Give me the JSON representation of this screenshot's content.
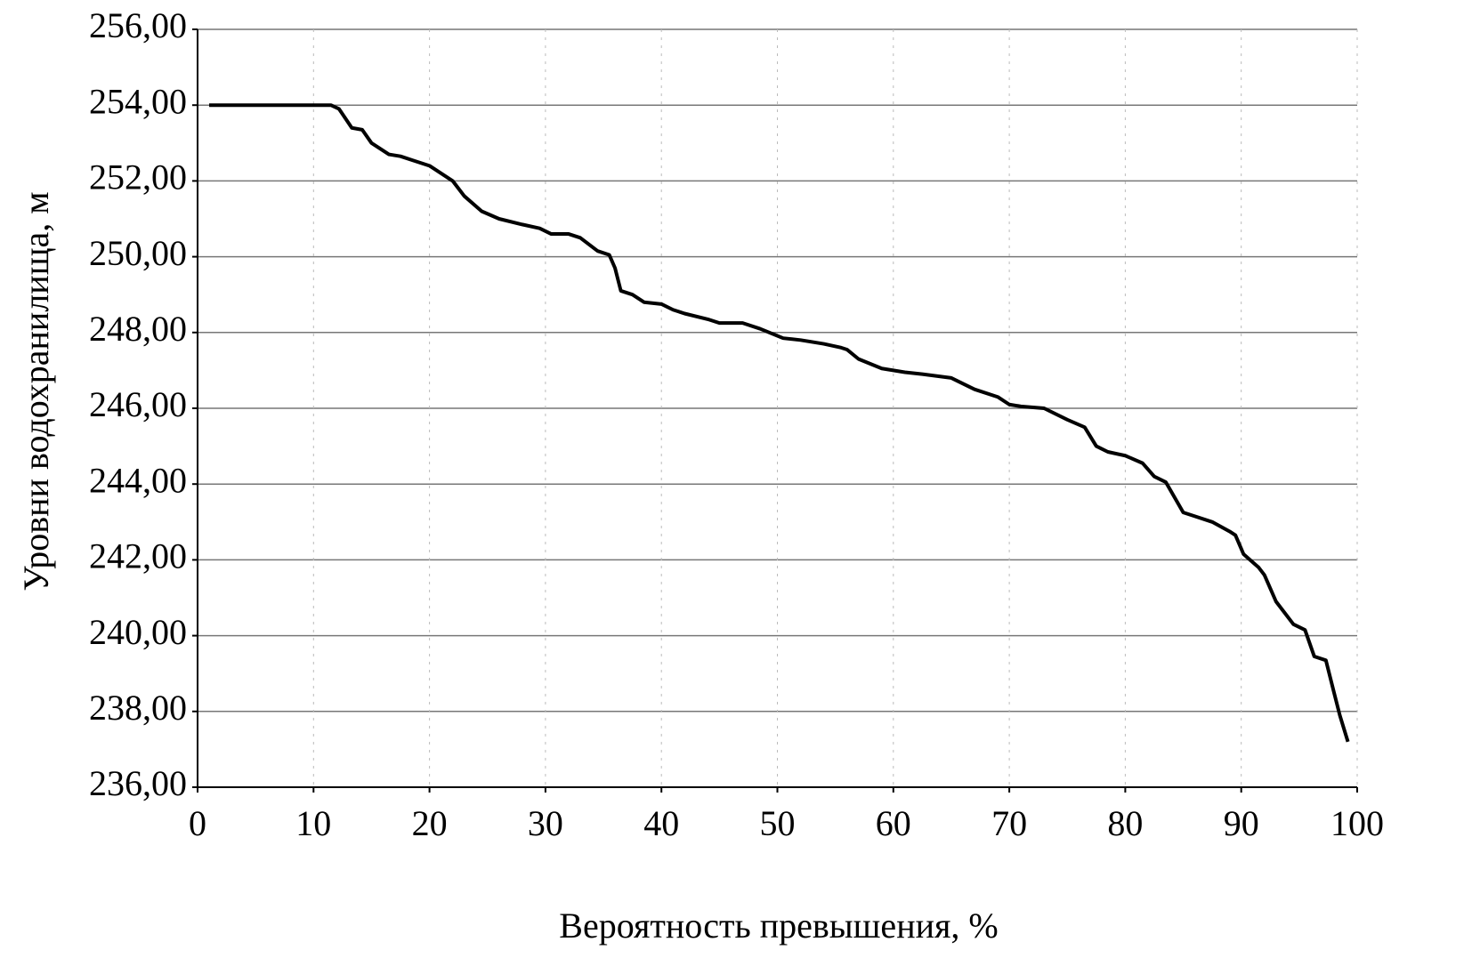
{
  "chart_data": {
    "type": "line",
    "x_label": "Вероятность превышения, %",
    "y_label": "Уровни водохранилища, м",
    "xlim": [
      0,
      100
    ],
    "xticks": [
      0,
      10,
      20,
      30,
      40,
      50,
      60,
      70,
      80,
      90,
      100
    ],
    "ylim": [
      236,
      256
    ],
    "yticks": [
      {
        "value": 236,
        "label": "236,00"
      },
      {
        "value": 238,
        "label": "238,00"
      },
      {
        "value": 240,
        "label": "240,00"
      },
      {
        "value": 242,
        "label": "242,00"
      },
      {
        "value": 244,
        "label": "244,00"
      },
      {
        "value": 246,
        "label": "246,00"
      },
      {
        "value": 248,
        "label": "248,00"
      },
      {
        "value": 250,
        "label": "250,00"
      },
      {
        "value": 252,
        "label": "252,00"
      },
      {
        "value": 254,
        "label": "254,00"
      },
      {
        "value": 256,
        "label": "256,00"
      }
    ],
    "grid": true,
    "color": "#000000",
    "x": [
      1,
      11.5,
      12.2,
      13.3,
      14.2,
      15,
      16.5,
      17.5,
      18.5,
      20,
      22,
      23,
      24.5,
      26,
      28,
      29.5,
      30.5,
      32,
      33,
      34.5,
      35.5,
      36,
      36.5,
      37.5,
      38.5,
      40,
      41,
      42,
      44,
      45,
      47,
      48.5,
      50.5,
      52,
      54,
      55.5,
      56,
      57,
      59,
      61,
      62.5,
      65,
      67,
      69,
      70,
      71,
      73,
      75,
      76.5,
      77.5,
      78.5,
      80,
      81.5,
      82.5,
      83.5,
      85,
      86,
      87.5,
      89,
      89.5,
      90.2,
      91.5,
      92,
      93,
      94.5,
      95.5,
      96.3,
      97.3,
      98,
      98.5,
      99.2
    ],
    "values": [
      254,
      254,
      253.9,
      253.4,
      253.35,
      253.0,
      252.7,
      252.65,
      252.55,
      252.4,
      252.0,
      251.6,
      251.2,
      251.0,
      250.85,
      250.75,
      250.6,
      250.6,
      250.5,
      250.15,
      250.05,
      249.7,
      249.1,
      249.0,
      248.8,
      248.75,
      248.6,
      248.5,
      248.35,
      248.25,
      248.25,
      248.1,
      247.85,
      247.8,
      247.7,
      247.6,
      247.55,
      247.3,
      247.05,
      246.95,
      246.9,
      246.8,
      246.5,
      246.3,
      246.1,
      246.05,
      246.0,
      245.7,
      245.5,
      245.0,
      244.85,
      244.75,
      244.55,
      244.2,
      244.05,
      243.25,
      243.15,
      243.0,
      242.75,
      242.65,
      242.15,
      241.8,
      241.6,
      240.9,
      240.3,
      240.15,
      239.45,
      239.35,
      238.5,
      237.9,
      237.2
    ]
  }
}
